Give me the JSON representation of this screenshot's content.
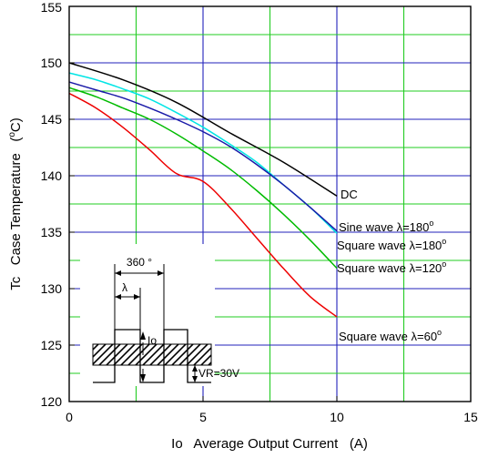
{
  "chart_data": {
    "type": "line",
    "xlabel": "Io   Average Output Current   (A)",
    "ylabel_pre": "Tc   Case Temperature   (",
    "ylabel_sup": "o",
    "ylabel_post": "C)",
    "xlim": [
      0,
      15
    ],
    "ylim": [
      120,
      155
    ],
    "xticks": [
      "0",
      "5",
      "10",
      "15"
    ],
    "yticks": [
      "120",
      "125",
      "130",
      "135",
      "140",
      "145",
      "150",
      "155"
    ],
    "grid": true,
    "colors": {
      "grid_minor": "#22cc22",
      "grid_major": "#2222bb",
      "frame": "#000000"
    },
    "series": [
      {
        "name": "DC",
        "color": "#000000",
        "x": [
          0,
          2,
          4,
          6,
          8,
          10
        ],
        "y": [
          150.0,
          148.5,
          146.5,
          143.8,
          141.2,
          138.2
        ]
      },
      {
        "name": "Sine wave λ=180°",
        "color": "#00e5e5",
        "x": [
          0,
          1,
          2,
          3,
          4,
          5,
          6,
          7,
          8,
          9,
          10
        ],
        "y": [
          149.1,
          148.5,
          147.7,
          146.8,
          145.6,
          144.3,
          142.8,
          141.2,
          139.2,
          137.2,
          134.9
        ]
      },
      {
        "name": "Square wave λ=180°",
        "color": "#1a1aa8",
        "x": [
          0,
          1,
          2,
          3,
          4,
          5,
          6,
          7,
          8,
          9,
          10
        ],
        "y": [
          148.3,
          147.6,
          146.9,
          146.0,
          145.0,
          143.9,
          142.6,
          141.0,
          139.2,
          137.2,
          135.1
        ]
      },
      {
        "name": "Square wave λ=120°",
        "color": "#00bb00",
        "x": [
          0,
          1,
          2,
          3,
          4,
          5,
          6,
          7,
          8,
          9,
          10
        ],
        "y": [
          147.8,
          147.0,
          146.0,
          145.0,
          143.7,
          142.2,
          140.6,
          138.7,
          136.6,
          134.3,
          131.8
        ]
      },
      {
        "name": "Square wave λ=60°",
        "color": "#ee0000",
        "x": [
          0,
          1,
          2,
          3,
          4,
          5,
          6,
          7,
          8,
          9,
          10
        ],
        "y": [
          147.3,
          146.0,
          144.3,
          142.3,
          140.2,
          139.5,
          137.2,
          134.5,
          131.8,
          129.3,
          127.5
        ]
      }
    ],
    "labels": [
      {
        "text": "DC"
      },
      {
        "text_pre": "Sine wave λ=180",
        "sup": "o"
      },
      {
        "text_pre": "Square wave λ=180",
        "sup": "o"
      },
      {
        "text_pre": "Square wave λ=120",
        "sup": "o"
      },
      {
        "text_pre": "Square wave λ=60",
        "sup": "o"
      }
    ],
    "inset": {
      "period": "360 °",
      "lambda": "λ",
      "current": "Io",
      "voltage": "VR=30V"
    }
  }
}
